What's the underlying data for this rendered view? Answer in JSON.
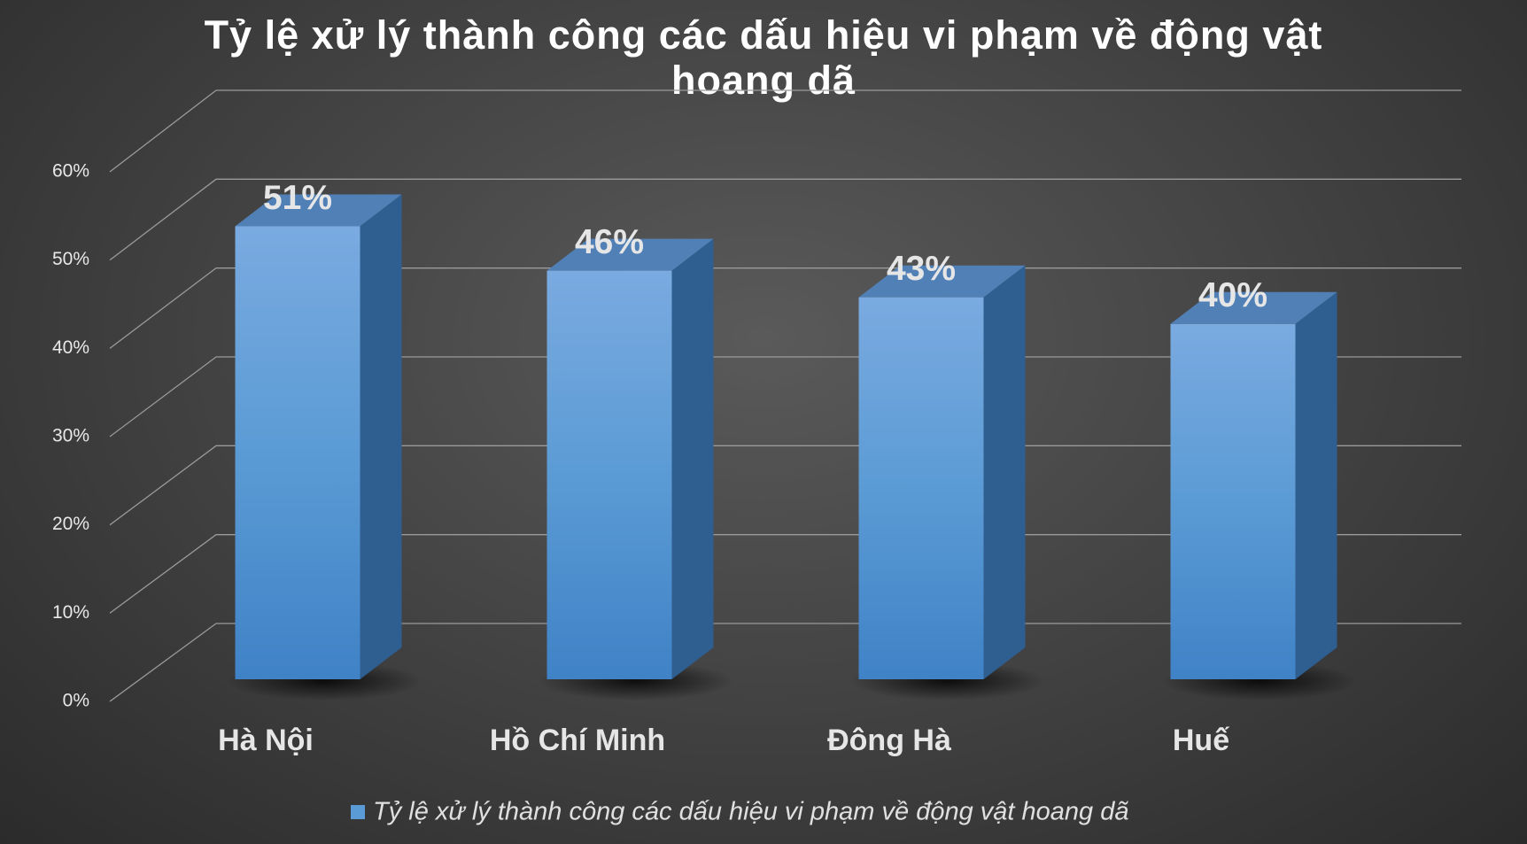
{
  "chart_data": {
    "type": "bar3d",
    "title": "Tỷ lệ xử lý thành công các dấu hiệu vi phạm về động vật hoang dã",
    "categories": [
      "Hà Nội",
      "Hồ Chí Minh",
      "Đông Hà",
      "Huế"
    ],
    "series": [
      {
        "name": "Tỷ lệ xử lý thành công các dấu hiệu vi phạm về động vật hoang dã",
        "color": "#5b9bd5",
        "values": [
          51,
          46,
          43,
          40
        ],
        "value_labels": [
          "51%",
          "46%",
          "43%",
          "40%"
        ]
      }
    ],
    "ylim": [
      0,
      60
    ],
    "yticks": [
      {
        "value": 0,
        "label": "0%"
      },
      {
        "value": 10,
        "label": "10%"
      },
      {
        "value": 20,
        "label": "20%"
      },
      {
        "value": 30,
        "label": "30%"
      },
      {
        "value": 40,
        "label": "40%"
      },
      {
        "value": 50,
        "label": "50%"
      },
      {
        "value": 60,
        "label": "60%"
      }
    ],
    "grid": true,
    "legend": "bottom"
  }
}
